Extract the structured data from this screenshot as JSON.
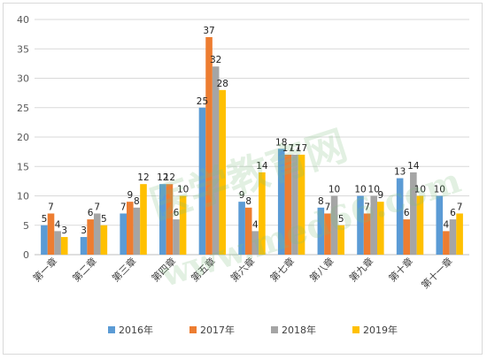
{
  "chart_data": {
    "type": "bar",
    "title": "",
    "xlabel": "",
    "ylabel": "",
    "ylim": [
      0,
      40
    ],
    "yticks": [
      0,
      5,
      10,
      15,
      20,
      25,
      30,
      35,
      40
    ],
    "grid": true,
    "legend_position": "bottom",
    "categories": [
      "第一章",
      "第二章",
      "第三章",
      "第四章",
      "第五章",
      "第六章",
      "第七章",
      "第八章",
      "第九章",
      "第十章",
      "第十一章"
    ],
    "series": [
      {
        "name": "2016年",
        "color": "#5b9bd5",
        "values": [
          5,
          3,
          7,
          12,
          25,
          9,
          18,
          8,
          10,
          13,
          10
        ]
      },
      {
        "name": "2017年",
        "color": "#ed7d31",
        "values": [
          7,
          6,
          9,
          12,
          37,
          8,
          17,
          7,
          7,
          6,
          4
        ]
      },
      {
        "name": "2018年",
        "color": "#a5a5a5",
        "values": [
          4,
          7,
          8,
          6,
          32,
          4,
          17,
          10,
          10,
          14,
          6
        ]
      },
      {
        "name": "2019年",
        "color": "#ffc000",
        "values": [
          3,
          5,
          12,
          10,
          28,
          14,
          17,
          5,
          9,
          10,
          7
        ]
      }
    ],
    "watermark_text": [
      "医学教育网",
      "www.med66.com"
    ]
  }
}
